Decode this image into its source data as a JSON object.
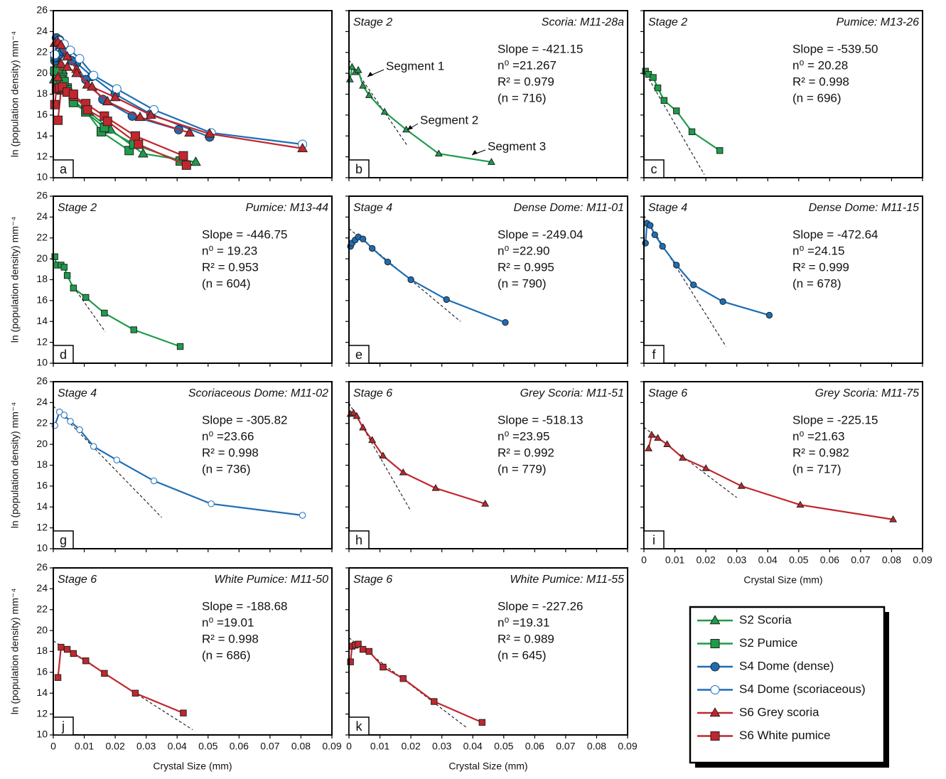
{
  "legend": [
    {
      "name": "S2 Scoria",
      "color": "#1d9c4a",
      "marker": "triangle",
      "filled": true
    },
    {
      "name": "S2 Pumice",
      "color": "#1d9c4a",
      "marker": "square",
      "filled": true
    },
    {
      "name": "S4 Dome (dense)",
      "color": "#1d6db5",
      "marker": "circle",
      "filled": true
    },
    {
      "name": "S4 Dome (scoriaceous)",
      "color": "#1d6db5",
      "marker": "circle",
      "filled": false
    },
    {
      "name": "S6 Grey scoria",
      "color": "#c1272d",
      "marker": "triangle",
      "filled": true
    },
    {
      "name": "S6 White pumice",
      "color": "#c1272d",
      "marker": "square",
      "filled": true
    }
  ],
  "x_label": "Crystal Size (mm)",
  "y_label": "ln (population density) mm⁻⁴",
  "chart_data": [
    {
      "type": "overlay",
      "panel": "a",
      "xlim": [
        0,
        0.09
      ],
      "ylim": [
        10,
        26
      ],
      "xticks": [
        0,
        0.01,
        0.02,
        0.03,
        0.04,
        0.05,
        0.06,
        0.07,
        0.08,
        0.09
      ],
      "yticks": [
        10,
        12,
        14,
        16,
        18,
        20,
        22,
        24,
        26
      ]
    },
    {
      "type": "line",
      "panel": "b",
      "stage": "Stage 2",
      "sample": "Scoria: M11-28a",
      "stats": [
        "Slope = -421.15",
        "n⁰ =21.267",
        "R² = 0.979",
        "(n = 716)"
      ],
      "annotations": [
        "Segment 1",
        "Segment 2",
        "Segment 3"
      ],
      "xlim": [
        0,
        0.09
      ],
      "ylim": [
        10,
        26
      ],
      "xticks": [
        0,
        0.01,
        0.02,
        0.03,
        0.04,
        0.05,
        0.06,
        0.07,
        0.08,
        0.09
      ],
      "yticks": [
        10,
        12,
        14,
        16,
        18,
        20,
        22,
        24,
        26
      ],
      "series": [
        {
          "color": "#1d9c4a",
          "marker": "triangle",
          "filled": true,
          "x": [
            0.0003,
            0.001,
            0.002,
            0.003,
            0.0045,
            0.0065,
            0.0115,
            0.0185,
            0.029,
            0.046
          ],
          "y": [
            19.4,
            20.6,
            20.1,
            20.3,
            18.8,
            17.9,
            16.3,
            14.6,
            12.3,
            11.5
          ]
        }
      ],
      "fit": {
        "x": [
          0,
          0.019
        ],
        "y": [
          21.27,
          13.0
        ]
      }
    },
    {
      "type": "line",
      "panel": "c",
      "stage": "Stage 2",
      "sample": "Pumice: M13-26",
      "stats": [
        "Slope = -539.50",
        "n⁰ = 20.28",
        "R² = 0.998",
        "(n = 696)"
      ],
      "xlim": [
        0,
        0.09
      ],
      "ylim": [
        10,
        26
      ],
      "xticks": [
        0,
        0.01,
        0.02,
        0.03,
        0.04,
        0.05,
        0.06,
        0.07,
        0.08,
        0.09
      ],
      "yticks": [
        10,
        12,
        14,
        16,
        18,
        20,
        22,
        24,
        26
      ],
      "series": [
        {
          "color": "#1d9c4a",
          "marker": "square",
          "filled": true,
          "x": [
            0.0005,
            0.0015,
            0.003,
            0.0045,
            0.0065,
            0.0105,
            0.0155,
            0.0245
          ],
          "y": [
            20.2,
            19.9,
            19.6,
            18.6,
            17.4,
            16.4,
            14.4,
            12.6
          ]
        }
      ],
      "fit": {
        "x": [
          0,
          0.0195
        ],
        "y": [
          20.28,
          10.3
        ]
      }
    },
    {
      "type": "line",
      "panel": "d",
      "stage": "Stage 2",
      "sample": "Pumice: M13-44",
      "stats": [
        "Slope = -446.75",
        "n⁰ = 19.23",
        "R² = 0.953",
        "(n = 604)"
      ],
      "xlim": [
        0,
        0.09
      ],
      "ylim": [
        10,
        26
      ],
      "xticks": [
        0,
        0.01,
        0.02,
        0.03,
        0.04,
        0.05,
        0.06,
        0.07,
        0.08,
        0.09
      ],
      "yticks": [
        10,
        12,
        14,
        16,
        18,
        20,
        22,
        24,
        26
      ],
      "series": [
        {
          "color": "#1d9c4a",
          "marker": "square",
          "filled": true,
          "x": [
            0.0005,
            0.001,
            0.0025,
            0.0035,
            0.0045,
            0.0065,
            0.0105,
            0.0165,
            0.026,
            0.041
          ],
          "y": [
            20.2,
            19.4,
            19.4,
            19.2,
            18.4,
            17.2,
            16.3,
            14.8,
            13.2,
            11.6
          ]
        }
      ],
      "fit": {
        "x": [
          0.0065,
          0.0168
        ],
        "y": [
          17.3,
          13.0
        ]
      }
    },
    {
      "type": "line",
      "panel": "e",
      "stage": "Stage 4",
      "sample": "Dense Dome: M11-01",
      "stats": [
        "Slope = -249.04",
        "n⁰ =22.90",
        "R² = 0.995",
        "(n = 790)"
      ],
      "xlim": [
        0,
        0.09
      ],
      "ylim": [
        10,
        26
      ],
      "xticks": [
        0,
        0.01,
        0.02,
        0.03,
        0.04,
        0.05,
        0.06,
        0.07,
        0.08,
        0.09
      ],
      "yticks": [
        10,
        12,
        14,
        16,
        18,
        20,
        22,
        24,
        26
      ],
      "series": [
        {
          "color": "#1d6db5",
          "marker": "circle",
          "filled": true,
          "x": [
            0.0005,
            0.001,
            0.002,
            0.003,
            0.0045,
            0.0075,
            0.0125,
            0.02,
            0.0315,
            0.0505
          ],
          "y": [
            21.2,
            21.5,
            21.8,
            22.1,
            21.9,
            21.0,
            19.7,
            18.0,
            16.1,
            13.9
          ]
        }
      ],
      "fit": {
        "x": [
          0,
          0.036
        ],
        "y": [
          22.9,
          14.0
        ]
      }
    },
    {
      "type": "line",
      "panel": "f",
      "stage": "Stage 4",
      "sample": "Dense Dome: M11-15",
      "stats": [
        "Slope = -472.64",
        "n⁰ =24.15",
        "R² = 0.999",
        "(n = 678)"
      ],
      "xlim": [
        0,
        0.09
      ],
      "ylim": [
        10,
        26
      ],
      "xticks": [
        0,
        0.01,
        0.02,
        0.03,
        0.04,
        0.05,
        0.06,
        0.07,
        0.08,
        0.09
      ],
      "yticks": [
        10,
        12,
        14,
        16,
        18,
        20,
        22,
        24,
        26
      ],
      "series": [
        {
          "color": "#1d6db5",
          "marker": "circle",
          "filled": true,
          "x": [
            0.0005,
            0.001,
            0.002,
            0.0035,
            0.006,
            0.0105,
            0.016,
            0.0255,
            0.0405
          ],
          "y": [
            21.5,
            23.4,
            23.2,
            22.3,
            21.2,
            19.4,
            17.5,
            15.9,
            14.6
          ]
        }
      ],
      "fit": {
        "x": [
          0,
          0.0265
        ],
        "y": [
          24.15,
          11.6
        ]
      }
    },
    {
      "type": "line",
      "panel": "g",
      "stage": "Stage 4",
      "sample": "Scoriaceous Dome: M11-02",
      "stats": [
        "Slope = -305.82",
        "n⁰ =23.66",
        "R² = 0.998",
        "(n = 736)"
      ],
      "xlim": [
        0,
        0.09
      ],
      "ylim": [
        10,
        26
      ],
      "xticks": [
        0,
        0.01,
        0.02,
        0.03,
        0.04,
        0.05,
        0.06,
        0.07,
        0.08,
        0.09
      ],
      "yticks": [
        10,
        12,
        14,
        16,
        18,
        20,
        22,
        24,
        26
      ],
      "series": [
        {
          "color": "#1d6db5",
          "marker": "circle",
          "filled": false,
          "x": [
            0.0005,
            0.002,
            0.0035,
            0.0055,
            0.0085,
            0.013,
            0.0205,
            0.0325,
            0.051,
            0.0805
          ],
          "y": [
            21.8,
            23.1,
            22.8,
            22.2,
            21.4,
            19.8,
            18.5,
            16.5,
            14.3,
            13.2
          ]
        }
      ],
      "fit": {
        "x": [
          0,
          0.035
        ],
        "y": [
          23.66,
          13.0
        ]
      }
    },
    {
      "type": "line",
      "panel": "h",
      "stage": "Stage 6",
      "sample": "Grey Scoria: M11-51",
      "stats": [
        "Slope = -518.13",
        "n⁰ =23.95",
        "R² = 0.992",
        "(n = 779)"
      ],
      "xlim": [
        0,
        0.09
      ],
      "ylim": [
        10,
        26
      ],
      "xticks": [
        0,
        0.01,
        0.02,
        0.03,
        0.04,
        0.05,
        0.06,
        0.07,
        0.08,
        0.09
      ],
      "yticks": [
        10,
        12,
        14,
        16,
        18,
        20,
        22,
        24,
        26
      ],
      "series": [
        {
          "color": "#c1272d",
          "marker": "triangle",
          "filled": true,
          "x": [
            0.0005,
            0.0015,
            0.0025,
            0.0045,
            0.0075,
            0.011,
            0.0175,
            0.028,
            0.044
          ],
          "y": [
            22.9,
            23.0,
            22.7,
            21.6,
            20.4,
            18.9,
            17.3,
            15.8,
            14.3
          ]
        }
      ],
      "fit": {
        "x": [
          0,
          0.02
        ],
        "y": [
          23.95,
          13.6
        ]
      }
    },
    {
      "type": "line",
      "panel": "i",
      "stage": "Stage 6",
      "sample": "Grey Scoria: M11-75",
      "stats": [
        "Slope = -225.15",
        "n⁰ =21.63",
        "R² = 0.982",
        "(n = 717)"
      ],
      "xlim": [
        0,
        0.09
      ],
      "ylim": [
        10,
        26
      ],
      "xticks": [
        0,
        0.01,
        0.02,
        0.03,
        0.04,
        0.05,
        0.06,
        0.07,
        0.08,
        0.09
      ],
      "yticks": [
        10,
        12,
        14,
        16,
        18,
        20,
        22,
        24,
        26
      ],
      "series": [
        {
          "color": "#c1272d",
          "marker": "triangle",
          "filled": true,
          "x": [
            0.0015,
            0.0025,
            0.0045,
            0.0075,
            0.0125,
            0.02,
            0.0315,
            0.0505,
            0.0805
          ],
          "y": [
            19.6,
            20.9,
            20.6,
            20.0,
            18.7,
            17.7,
            16.0,
            14.2,
            12.8
          ]
        }
      ],
      "fit": {
        "x": [
          0,
          0.03
        ],
        "y": [
          21.63,
          14.9
        ]
      }
    },
    {
      "type": "line",
      "panel": "j",
      "stage": "Stage 6",
      "sample": "White Pumice: M11-50",
      "stats": [
        "Slope = -188.68",
        "n⁰ =19.01",
        "R² = 0.998",
        "(n = 686)"
      ],
      "xlim": [
        0,
        0.09
      ],
      "ylim": [
        10,
        26
      ],
      "xticks": [
        0,
        0.01,
        0.02,
        0.03,
        0.04,
        0.05,
        0.06,
        0.07,
        0.08,
        0.09
      ],
      "yticks": [
        10,
        12,
        14,
        16,
        18,
        20,
        22,
        24,
        26
      ],
      "series": [
        {
          "color": "#c1272d",
          "marker": "square",
          "filled": true,
          "x": [
            0.0015,
            0.0025,
            0.0045,
            0.0065,
            0.0105,
            0.0165,
            0.0265,
            0.042
          ],
          "y": [
            15.5,
            18.4,
            18.2,
            17.8,
            17.1,
            15.9,
            14.0,
            12.1
          ]
        }
      ],
      "fit": {
        "x": [
          0,
          0.045
        ],
        "y": [
          19.01,
          10.5
        ]
      }
    },
    {
      "type": "line",
      "panel": "k",
      "stage": "Stage 6",
      "sample": "White Pumice: M11-55",
      "stats": [
        "Slope = -227.26",
        "n⁰ =19.31",
        "R² = 0.989",
        "(n = 645)"
      ],
      "xlim": [
        0,
        0.09
      ],
      "ylim": [
        10,
        26
      ],
      "xticks": [
        0,
        0.01,
        0.02,
        0.03,
        0.04,
        0.05,
        0.06,
        0.07,
        0.08,
        0.09
      ],
      "yticks": [
        10,
        12,
        14,
        16,
        18,
        20,
        22,
        24,
        26
      ],
      "series": [
        {
          "color": "#c1272d",
          "marker": "square",
          "filled": true,
          "x": [
            0.0005,
            0.001,
            0.002,
            0.003,
            0.0045,
            0.0065,
            0.011,
            0.0175,
            0.0275,
            0.043
          ],
          "y": [
            17.0,
            18.5,
            18.6,
            18.7,
            18.2,
            18.0,
            16.5,
            15.4,
            13.2,
            11.2
          ]
        }
      ],
      "fit": {
        "x": [
          0,
          0.038
        ],
        "y": [
          19.31,
          10.7
        ]
      }
    }
  ]
}
